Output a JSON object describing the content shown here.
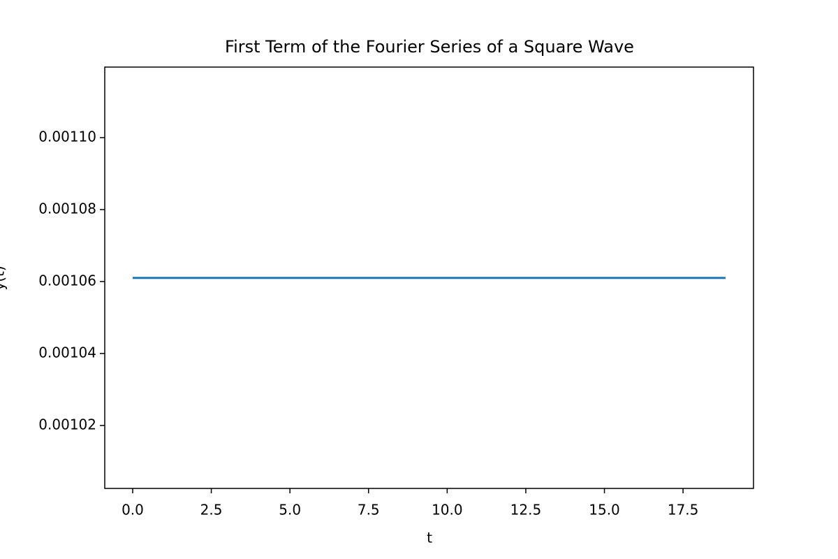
{
  "chart_data": {
    "type": "line",
    "title": "First Term of the Fourier Series of a Square Wave",
    "x_label": "t",
    "y_label": "y(t)",
    "x": [
      0,
      18.85
    ],
    "series": [
      {
        "name": "y(t)",
        "color": "#1f77b4",
        "values": [
          0.001061,
          0.001061
        ]
      }
    ],
    "xlim": [
      -0.888,
      19.74
    ],
    "xticks": [
      {
        "value": 0,
        "label": "0.0"
      },
      2.5,
      {
        "value": 5,
        "label": "5.0"
      },
      7.5,
      {
        "value": 10,
        "label": "10.0"
      },
      12.5,
      {
        "value": 15,
        "label": "15.0"
      },
      17.5
    ],
    "ylim": [
      0.0010025,
      0.0011196
    ],
    "yticks": [
      {
        "value": 0.00102,
        "label": "0.00102"
      },
      {
        "value": 0.00104,
        "label": "0.00104"
      },
      {
        "value": 0.00106,
        "label": "0.00106"
      },
      {
        "value": 0.00108,
        "label": "0.00108"
      },
      {
        "value": 0.0011,
        "label": "0.00110"
      }
    ],
    "grid": false
  }
}
